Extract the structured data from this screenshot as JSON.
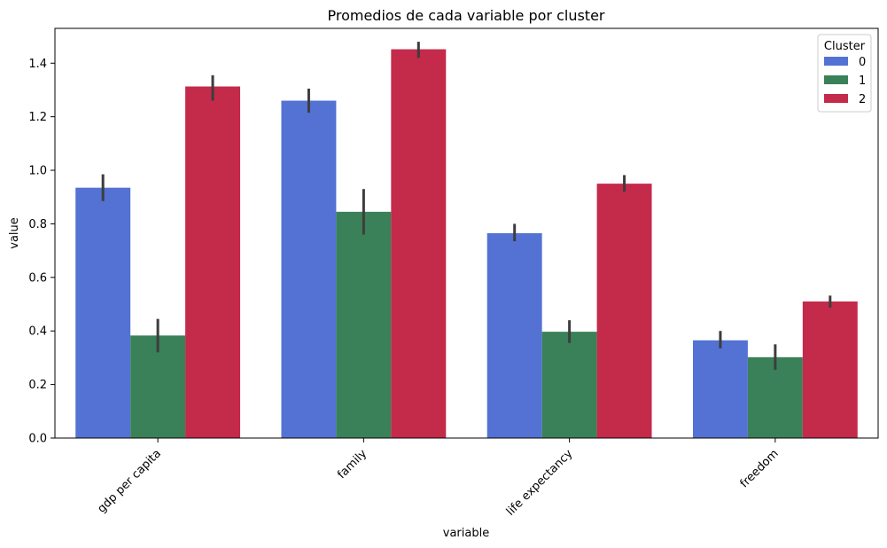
{
  "chart_data": {
    "type": "bar",
    "title": "Promedios de cada variable por cluster",
    "xlabel": "variable",
    "ylabel": "value",
    "categories": [
      "gdp per capita",
      "family",
      "life expectancy",
      "freedom"
    ],
    "ylim": [
      0,
      1.53
    ],
    "yticks": [
      "0.0",
      "0.2",
      "0.4",
      "0.6",
      "0.8",
      "1.0",
      "1.2",
      "1.4"
    ],
    "grid": false,
    "legend": {
      "title": "Cluster",
      "position": "top-right"
    },
    "series": [
      {
        "name": "0",
        "color": "#5472d3",
        "values": [
          0.935,
          1.26,
          0.765,
          0.365
        ],
        "ci_low": [
          0.885,
          1.215,
          0.735,
          0.335
        ],
        "ci_high": [
          0.985,
          1.305,
          0.8,
          0.4
        ]
      },
      {
        "name": "1",
        "color": "#3a8159",
        "values": [
          0.383,
          0.845,
          0.397,
          0.302
        ],
        "ci_low": [
          0.32,
          0.76,
          0.355,
          0.255
        ],
        "ci_high": [
          0.445,
          0.93,
          0.44,
          0.35
        ]
      },
      {
        "name": "2",
        "color": "#c42a4a",
        "values": [
          1.313,
          1.452,
          0.95,
          0.51
        ],
        "ci_low": [
          1.26,
          1.42,
          0.92,
          0.487
        ],
        "ci_high": [
          1.355,
          1.48,
          0.982,
          0.532
        ]
      }
    ],
    "errorbar_color": "#3d3d3d",
    "axis_color": "#000000"
  }
}
